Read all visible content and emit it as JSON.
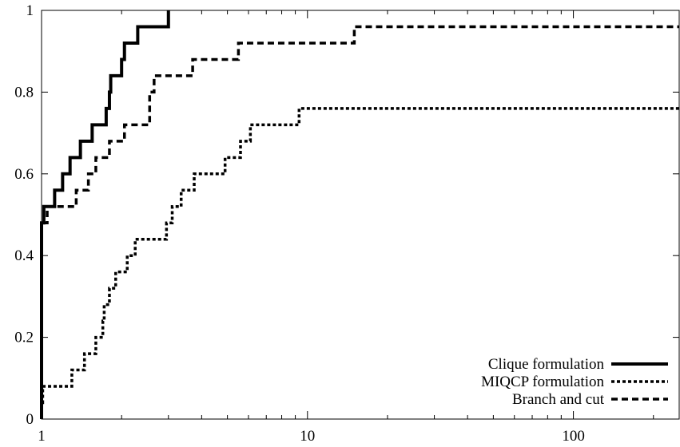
{
  "chart_data": {
    "type": "line",
    "line_shape": "step",
    "title": "",
    "xlabel": "",
    "ylabel": "",
    "x_scale": "log",
    "xlim": [
      1,
      250
    ],
    "ylim": [
      0,
      1
    ],
    "grid": false,
    "legend_position": "bottom-right",
    "x_ticks": [
      {
        "value": 1,
        "label": "1"
      },
      {
        "value": 10,
        "label": "10"
      },
      {
        "value": 100,
        "label": "100"
      }
    ],
    "y_ticks": [
      {
        "value": 0,
        "label": "0"
      },
      {
        "value": 0.2,
        "label": "0.2"
      },
      {
        "value": 0.4,
        "label": "0.4"
      },
      {
        "value": 0.6,
        "label": "0.6"
      },
      {
        "value": 0.8,
        "label": "0.8"
      },
      {
        "value": 1,
        "label": "1"
      }
    ],
    "series": [
      {
        "name": "Clique formulation",
        "style": "solid",
        "color": "#000000",
        "points": [
          [
            1,
            0
          ],
          [
            1,
            0.48
          ],
          [
            1.02,
            0.52
          ],
          [
            1.12,
            0.56
          ],
          [
            1.2,
            0.6
          ],
          [
            1.28,
            0.64
          ],
          [
            1.4,
            0.68
          ],
          [
            1.55,
            0.72
          ],
          [
            1.75,
            0.76
          ],
          [
            1.8,
            0.8
          ],
          [
            1.82,
            0.84
          ],
          [
            2.0,
            0.88
          ],
          [
            2.05,
            0.92
          ],
          [
            2.3,
            0.96
          ],
          [
            3.0,
            1.0
          ],
          [
            3.0,
            1.0
          ]
        ]
      },
      {
        "name": "MIQCP formulation",
        "style": "dotted",
        "color": "#000000",
        "points": [
          [
            1,
            0
          ],
          [
            1,
            0.04
          ],
          [
            1.01,
            0.08
          ],
          [
            1.3,
            0.12
          ],
          [
            1.45,
            0.16
          ],
          [
            1.6,
            0.2
          ],
          [
            1.7,
            0.24
          ],
          [
            1.72,
            0.28
          ],
          [
            1.8,
            0.32
          ],
          [
            1.9,
            0.36
          ],
          [
            2.1,
            0.4
          ],
          [
            2.25,
            0.44
          ],
          [
            2.95,
            0.48
          ],
          [
            3.1,
            0.52
          ],
          [
            3.35,
            0.56
          ],
          [
            3.75,
            0.6
          ],
          [
            4.9,
            0.64
          ],
          [
            5.6,
            0.68
          ],
          [
            6.1,
            0.72
          ],
          [
            9.3,
            0.76
          ],
          [
            250,
            0.76
          ]
        ]
      },
      {
        "name": "Branch and cut",
        "style": "dashed",
        "color": "#000000",
        "points": [
          [
            1,
            0
          ],
          [
            1,
            0.48
          ],
          [
            1.05,
            0.52
          ],
          [
            1.35,
            0.56
          ],
          [
            1.5,
            0.6
          ],
          [
            1.6,
            0.64
          ],
          [
            1.8,
            0.68
          ],
          [
            2.05,
            0.72
          ],
          [
            2.55,
            0.8
          ],
          [
            2.65,
            0.84
          ],
          [
            3.7,
            0.88
          ],
          [
            5.5,
            0.92
          ],
          [
            15,
            0.96
          ],
          [
            250,
            0.96
          ]
        ]
      }
    ]
  }
}
